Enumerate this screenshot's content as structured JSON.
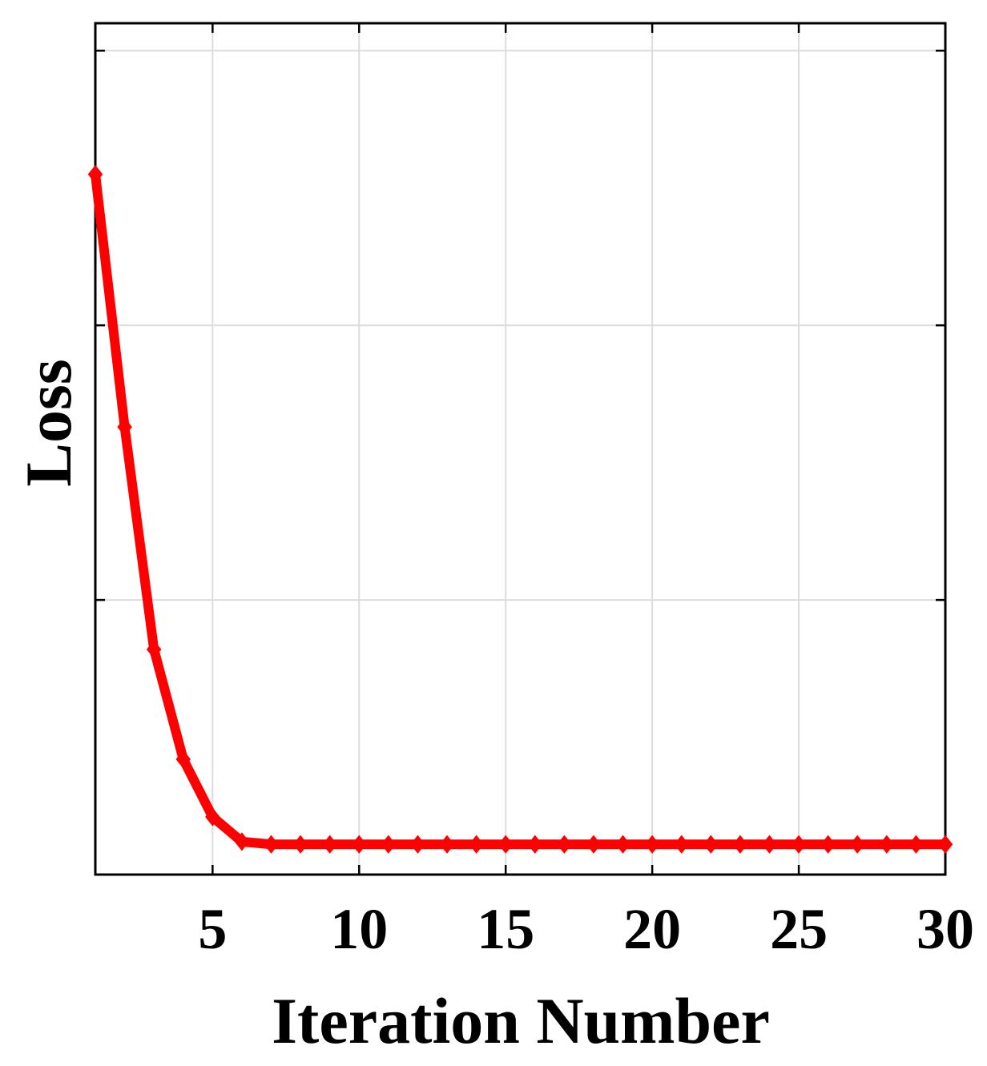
{
  "chart_data": {
    "type": "line",
    "title": "",
    "xlabel": "Iteration Number",
    "ylabel": "Loss",
    "xlim": [
      1,
      30
    ],
    "ylim": [
      0,
      3.1
    ],
    "grid": true,
    "xticks": [
      5,
      10,
      15,
      20,
      25,
      30
    ],
    "yticks": [
      1,
      2,
      3
    ],
    "ytick_labels_shown": false,
    "series": [
      {
        "color": "#ff0000",
        "marker": "diamond",
        "x": [
          1,
          2,
          3,
          4,
          5,
          6,
          7,
          8,
          9,
          10,
          11,
          12,
          13,
          14,
          15,
          16,
          17,
          18,
          19,
          20,
          21,
          22,
          23,
          24,
          25,
          26,
          27,
          28,
          29,
          30
        ],
        "y": [
          2.55,
          1.63,
          0.82,
          0.42,
          0.21,
          0.12,
          0.11,
          0.11,
          0.11,
          0.11,
          0.11,
          0.11,
          0.11,
          0.11,
          0.11,
          0.11,
          0.11,
          0.11,
          0.11,
          0.11,
          0.11,
          0.11,
          0.11,
          0.11,
          0.11,
          0.11,
          0.11,
          0.11,
          0.11,
          0.11
        ]
      }
    ]
  }
}
